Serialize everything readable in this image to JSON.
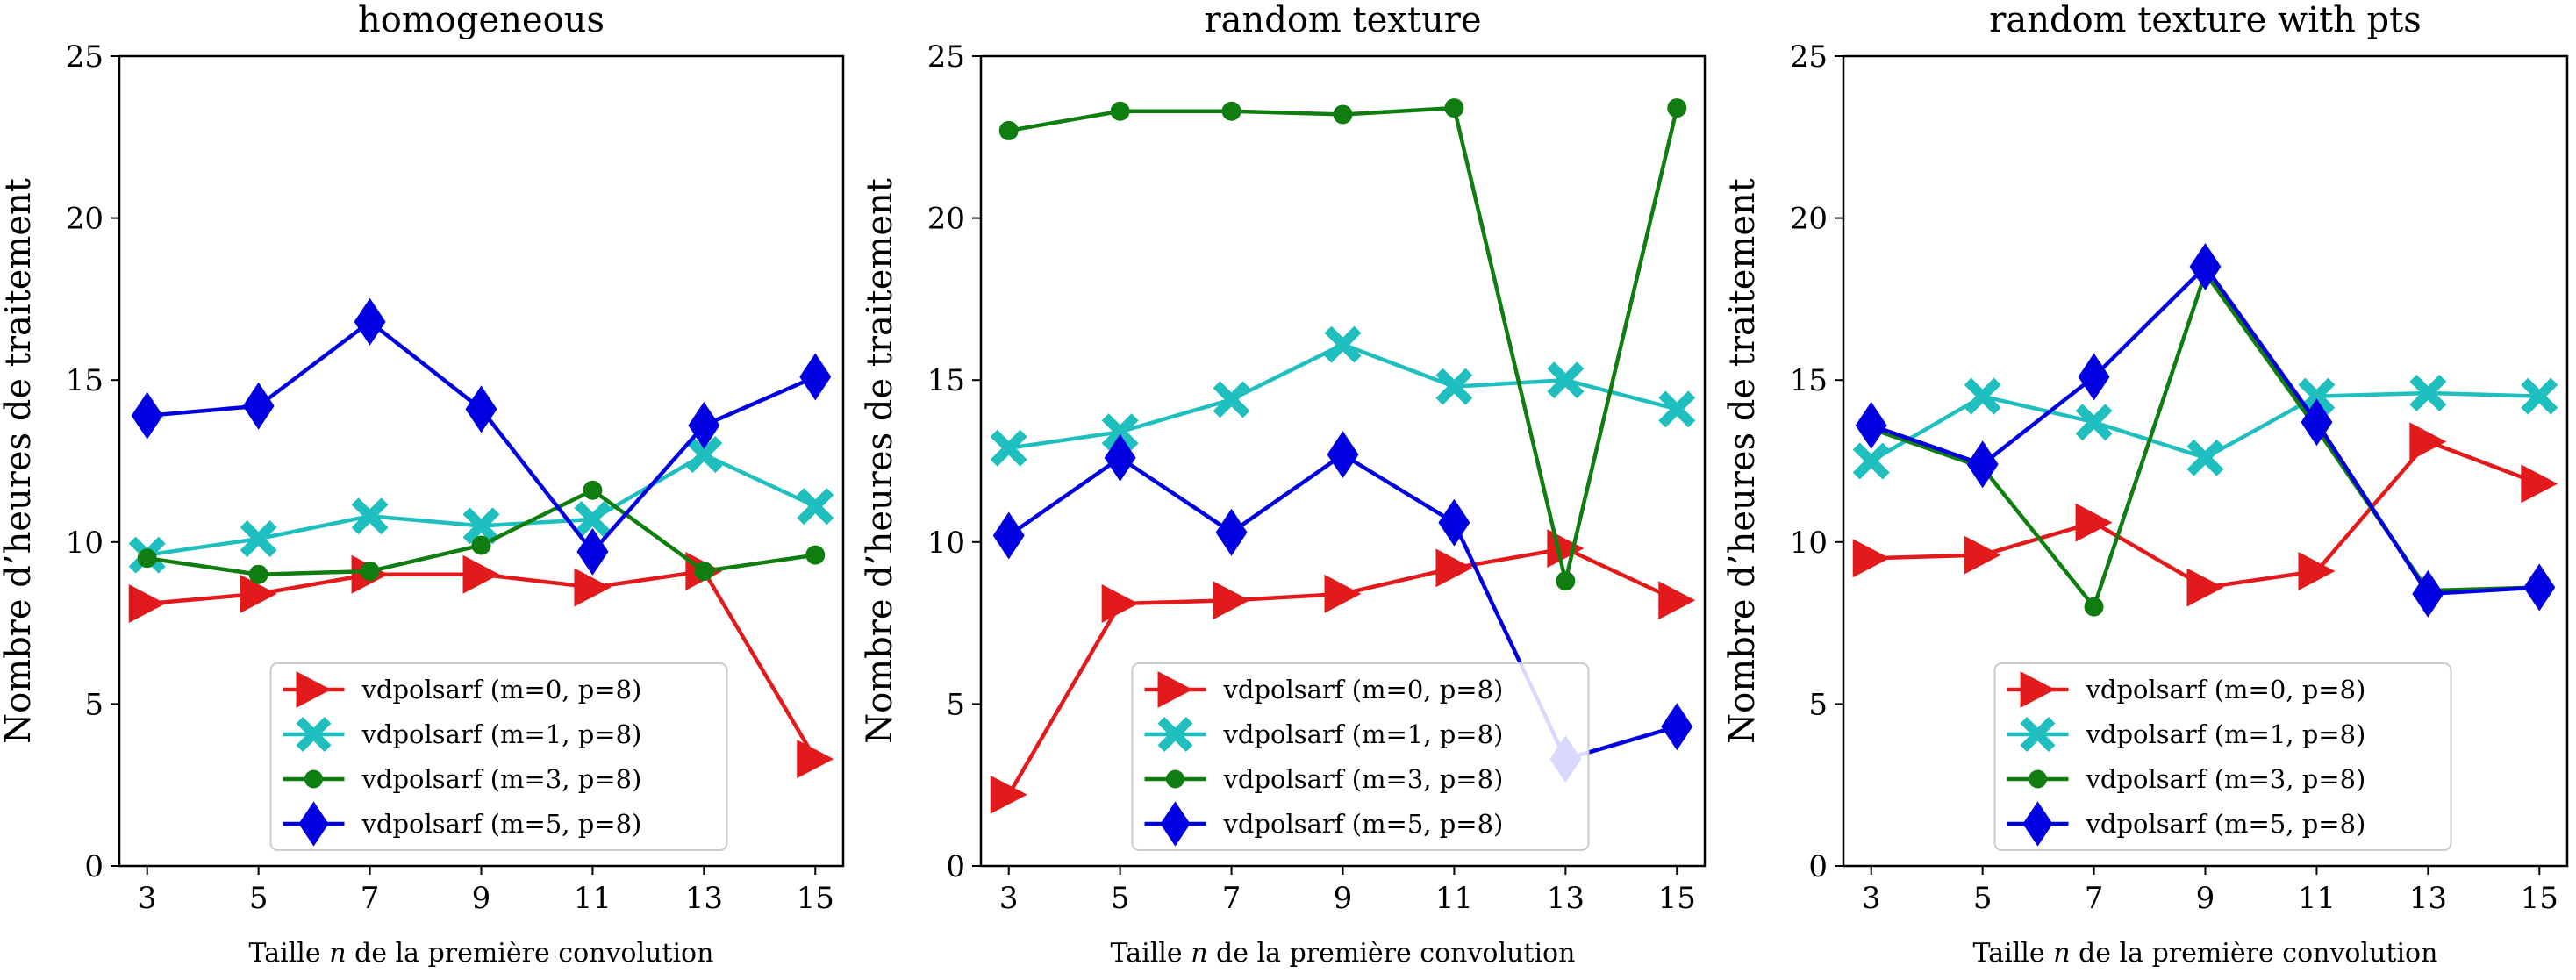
{
  "chart_data": [
    {
      "type": "line",
      "title": "homogeneous",
      "xlabel": "Taille n de la première convolution",
      "ylabel": "Nombre d’heures de traitement",
      "x": [
        3,
        5,
        7,
        9,
        11,
        13,
        15
      ],
      "xlim": [
        2.5,
        15.5
      ],
      "ylim": [
        0,
        25
      ],
      "yticks": [
        0,
        5,
        10,
        15,
        20,
        25
      ],
      "grid": false,
      "legend": "lower-center",
      "series": [
        {
          "name": "vdpolsarf (m=0, p=8)",
          "color": "#e31a1c",
          "marker": "triangle-right",
          "values": [
            8.1,
            8.4,
            9.0,
            9.0,
            8.6,
            9.1,
            3.3
          ]
        },
        {
          "name": "vdpolsarf (m=1, p=8)",
          "color": "#1fbfbf",
          "marker": "x-filled",
          "values": [
            9.6,
            10.1,
            10.8,
            10.5,
            10.7,
            12.7,
            11.1
          ]
        },
        {
          "name": "vdpolsarf (m=3, p=8)",
          "color": "#0f7d0f",
          "marker": "circle",
          "values": [
            9.5,
            9.0,
            9.1,
            9.9,
            11.6,
            9.1,
            9.6
          ]
        },
        {
          "name": "vdpolsarf (m=5, p=8)",
          "color": "#0000e0",
          "marker": "diamond",
          "values": [
            13.9,
            14.2,
            16.8,
            14.1,
            9.7,
            13.6,
            15.1
          ]
        }
      ]
    },
    {
      "type": "line",
      "title": "random texture",
      "xlabel": "Taille n de la première convolution",
      "ylabel": "Nombre d’heures de traitement",
      "x": [
        3,
        5,
        7,
        9,
        11,
        13,
        15
      ],
      "xlim": [
        2.5,
        15.5
      ],
      "ylim": [
        0,
        25
      ],
      "yticks": [
        0,
        5,
        10,
        15,
        20,
        25
      ],
      "grid": false,
      "legend": "lower-center",
      "series": [
        {
          "name": "vdpolsarf (m=0, p=8)",
          "color": "#e31a1c",
          "marker": "triangle-right",
          "values": [
            2.2,
            8.1,
            8.2,
            8.4,
            9.2,
            9.8,
            8.2
          ]
        },
        {
          "name": "vdpolsarf (m=1, p=8)",
          "color": "#1fbfbf",
          "marker": "x-filled",
          "values": [
            12.9,
            13.4,
            14.4,
            16.1,
            14.8,
            15.0,
            14.1
          ]
        },
        {
          "name": "vdpolsarf (m=3, p=8)",
          "color": "#0f7d0f",
          "marker": "circle",
          "values": [
            22.7,
            23.3,
            23.3,
            23.2,
            23.4,
            8.8,
            23.4
          ]
        },
        {
          "name": "vdpolsarf (m=5, p=8)",
          "color": "#0000e0",
          "marker": "diamond",
          "values": [
            10.2,
            12.6,
            10.3,
            12.7,
            10.6,
            3.3,
            4.3
          ]
        }
      ]
    },
    {
      "type": "line",
      "title": "random texture with pts",
      "xlabel": "Taille n de la première convolution",
      "ylabel": "Nombre d’heures de traitement",
      "x": [
        3,
        5,
        7,
        9,
        11,
        13,
        15
      ],
      "xlim": [
        2.5,
        15.5
      ],
      "ylim": [
        0,
        25
      ],
      "yticks": [
        0,
        5,
        10,
        15,
        20,
        25
      ],
      "grid": false,
      "legend": "lower-center",
      "series": [
        {
          "name": "vdpolsarf (m=0, p=8)",
          "color": "#e31a1c",
          "marker": "triangle-right",
          "values": [
            9.5,
            9.6,
            10.6,
            8.6,
            9.1,
            13.1,
            11.8
          ]
        },
        {
          "name": "vdpolsarf (m=1, p=8)",
          "color": "#1fbfbf",
          "marker": "x-filled",
          "values": [
            12.5,
            14.5,
            13.7,
            12.6,
            14.5,
            14.6,
            14.5
          ]
        },
        {
          "name": "vdpolsarf (m=3, p=8)",
          "color": "#0f7d0f",
          "marker": "circle",
          "values": [
            13.5,
            12.3,
            8.0,
            18.3,
            13.5,
            8.5,
            8.6
          ]
        },
        {
          "name": "vdpolsarf (m=5, p=8)",
          "color": "#0000e0",
          "marker": "diamond",
          "values": [
            13.6,
            12.4,
            15.1,
            18.5,
            13.7,
            8.4,
            8.6
          ]
        }
      ]
    }
  ]
}
